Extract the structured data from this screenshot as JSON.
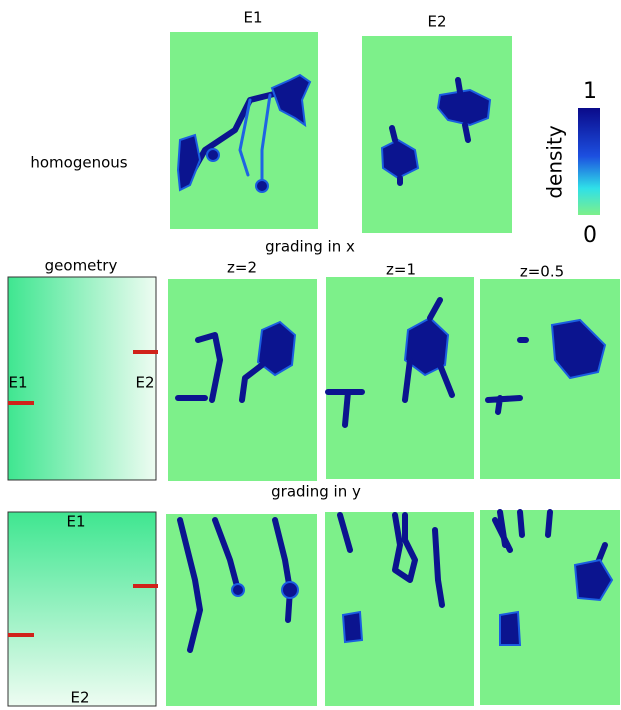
{
  "homogeneous_row": {
    "label": "homogenous",
    "panels": [
      "E1",
      "E2"
    ]
  },
  "colorbar": {
    "label": "density",
    "max": "1",
    "min": "0"
  },
  "grading_x": {
    "title": "grading in x",
    "geometry": {
      "title": "geometry",
      "left": "E1",
      "right": "E2"
    },
    "panels": [
      "z=2",
      "z=1",
      "z=0.5"
    ]
  },
  "grading_y": {
    "title": "grading in y",
    "geometry": {
      "top": "E1",
      "bottom": "E2"
    }
  }
}
